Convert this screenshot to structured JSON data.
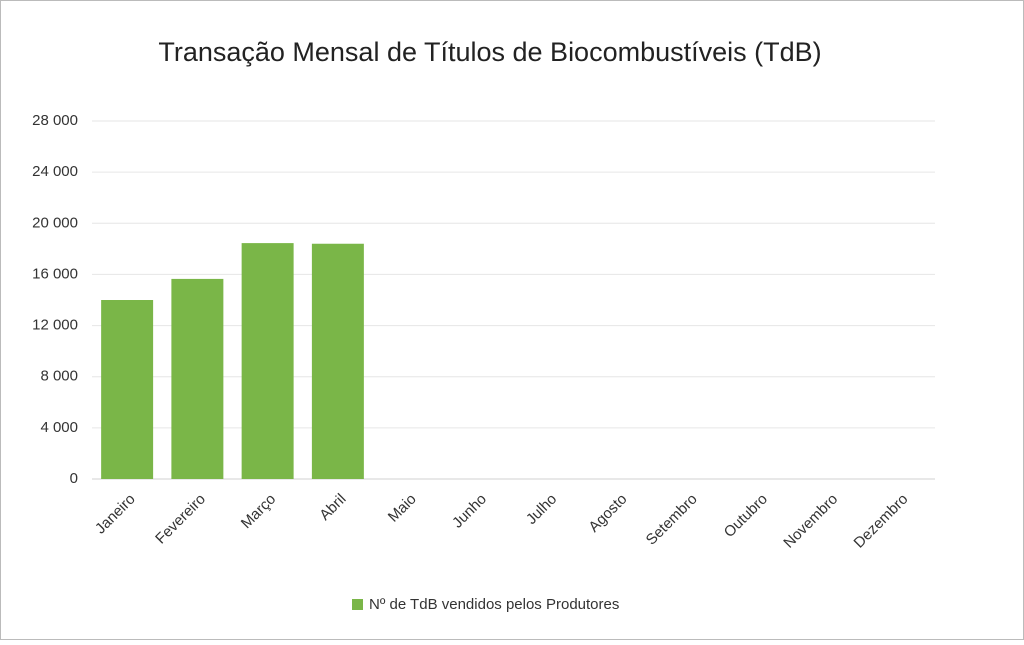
{
  "chart_data": {
    "type": "bar",
    "title": "Transação Mensal de Títulos de Biocombustíveis (TdB)",
    "categories": [
      "Janeiro",
      "Fevereiro",
      "Março",
      "Abril",
      "Maio",
      "Junho",
      "Julho",
      "Agosto",
      "Setembro",
      "Outubro",
      "Novembro",
      "Dezembro"
    ],
    "series": [
      {
        "name": "Nº de TdB vendidos pelos Produtores",
        "color": "#7ab648",
        "values": [
          14000,
          15650,
          18450,
          18400,
          null,
          null,
          null,
          null,
          null,
          null,
          null,
          null
        ]
      }
    ],
    "ylim": [
      0,
      28000
    ],
    "yticks": [
      0,
      {
        "value": 4000,
        "label": "4 000"
      },
      {
        "value": 8000,
        "label": "8 000"
      },
      {
        "value": 12000,
        "label": "12 000"
      },
      {
        "value": 16000,
        "label": "16 000"
      },
      {
        "value": 20000,
        "label": "20 000"
      },
      {
        "value": 24000,
        "label": "24 000"
      },
      {
        "value": 28000,
        "label": "28 000"
      }
    ],
    "grid": true,
    "legend": "bottom"
  }
}
